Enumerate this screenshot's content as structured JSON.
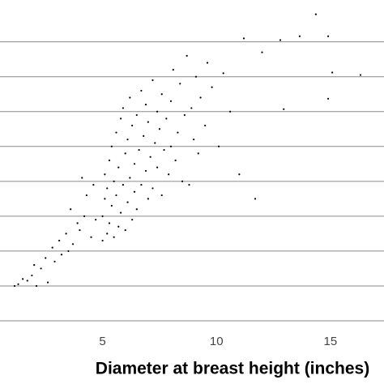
{
  "chart_data": {
    "type": "scatter",
    "x_label": "Diameter at breast height (inches)",
    "x": [
      1.14,
      1.3,
      1.5,
      1.7,
      1.9,
      2.1,
      2.0,
      2.3,
      2.5,
      2.6,
      2.8,
      2.9,
      3.1,
      3.2,
      3.4,
      3.5,
      3.7,
      3.9,
      3.6,
      4.0,
      4.2,
      4.3,
      4.5,
      4.6,
      4.7,
      4.1,
      5.0,
      5.0,
      5.1,
      5.1,
      5.2,
      5.2,
      5.3,
      5.3,
      5.4,
      5.4,
      5.5,
      5.5,
      5.6,
      5.6,
      5.7,
      5.7,
      5.8,
      5.8,
      5.9,
      5.9,
      6.0,
      6.0,
      6.1,
      6.1,
      6.2,
      6.2,
      6.3,
      6.3,
      6.4,
      6.4,
      6.5,
      6.5,
      6.6,
      6.7,
      6.7,
      6.8,
      6.9,
      6.9,
      7.0,
      7.0,
      7.1,
      7.2,
      7.2,
      7.3,
      7.4,
      7.4,
      7.5,
      7.6,
      7.6,
      7.7,
      7.8,
      7.9,
      8.0,
      8.0,
      8.1,
      8.2,
      8.3,
      8.4,
      8.5,
      8.6,
      8.7,
      8.8,
      8.9,
      9.0,
      9.1,
      9.2,
      9.3,
      9.5,
      9.6,
      9.8,
      10.1,
      10.3,
      10.6,
      11.0,
      11.2,
      11.7,
      12.0,
      12.8,
      12.95,
      13.65,
      14.36,
      14.9,
      14.9,
      15.08,
      16.32
    ],
    "y": [
      1.0,
      1.05,
      1.2,
      1.15,
      1.3,
      1.0,
      1.6,
      1.5,
      1.8,
      1.1,
      2.1,
      1.7,
      2.3,
      1.9,
      2.5,
      2.0,
      2.2,
      2.8,
      3.2,
      2.6,
      3.0,
      3.6,
      2.4,
      3.9,
      2.9,
      4.1,
      2.3,
      3.0,
      3.5,
      4.2,
      2.5,
      3.8,
      4.6,
      2.8,
      3.3,
      5.0,
      2.4,
      4.0,
      3.6,
      5.4,
      2.7,
      4.4,
      3.1,
      5.8,
      3.9,
      6.1,
      2.6,
      4.8,
      3.4,
      5.2,
      4.1,
      6.4,
      2.9,
      5.6,
      3.7,
      4.5,
      5.9,
      3.2,
      4.9,
      6.6,
      3.9,
      5.3,
      4.3,
      6.2,
      3.5,
      5.7,
      4.7,
      6.9,
      3.8,
      5.1,
      6.0,
      4.4,
      5.5,
      3.6,
      6.5,
      4.9,
      5.8,
      4.2,
      6.3,
      5.0,
      7.2,
      4.6,
      5.4,
      6.8,
      4.0,
      5.9,
      7.6,
      3.9,
      6.1,
      5.2,
      7.0,
      4.8,
      6.4,
      5.6,
      7.4,
      6.7,
      5.0,
      7.1,
      6.0,
      4.2,
      8.1,
      3.5,
      7.7,
      8.05,
      6.07,
      8.16,
      8.79,
      8.16,
      6.37,
      7.12,
      7.05
    ],
    "color": "#000000",
    "xlim": [
      0.5,
      17.35
    ],
    "xticks": [
      5,
      10,
      15
    ],
    "ylim": [
      0,
      9.2
    ],
    "yticks": [
      0,
      1,
      2,
      3,
      4,
      5,
      6,
      7,
      8
    ],
    "grid": true
  }
}
